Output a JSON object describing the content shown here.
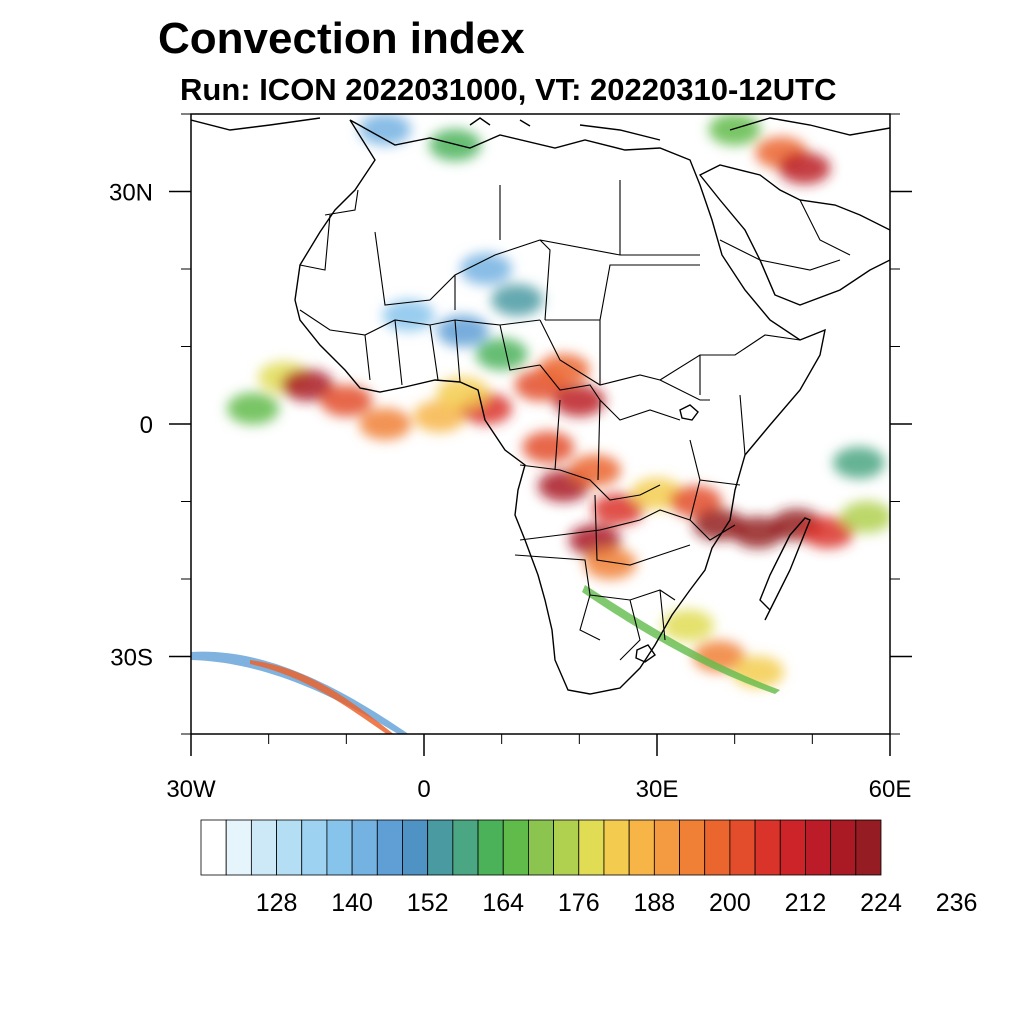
{
  "title": "Convection index",
  "subtitle": "Run: ICON 2022031000,  VT: 20220310-12UTC",
  "map": {
    "projection": "cylindrical-equidistant",
    "lon_range": [
      -30,
      60
    ],
    "lat_range": [
      -40,
      40
    ],
    "x_ticks": [
      {
        "value": -30,
        "label": "30W"
      },
      {
        "value": 0,
        "label": "0"
      },
      {
        "value": 30,
        "label": "30E"
      },
      {
        "value": 60,
        "label": "60E"
      }
    ],
    "y_ticks": [
      {
        "value": 30,
        "label": "30N"
      },
      {
        "value": 0,
        "label": "0"
      },
      {
        "value": -30,
        "label": "30S"
      }
    ]
  },
  "colorbar": {
    "labels": [
      "128",
      "140",
      "152",
      "164",
      "176",
      "188",
      "200",
      "212",
      "224",
      "236"
    ],
    "colors": [
      "#ffffff",
      "#e6f4fc",
      "#cde9f8",
      "#b4def4",
      "#9dd3f1",
      "#87c4ec",
      "#74b2e2",
      "#5f9fd6",
      "#4f93c4",
      "#4a9aa2",
      "#4aa683",
      "#4bb25a",
      "#61bb4b",
      "#8bc54f",
      "#b0d04f",
      "#e0dc54",
      "#f3cc4f",
      "#f7b548",
      "#f49a40",
      "#f08036",
      "#eb652f",
      "#e34d2c",
      "#da3329",
      "#cc2428",
      "#bb1c27",
      "#a91a25",
      "#941c22"
    ]
  },
  "fields": [
    {
      "lon": -18,
      "lat": 6,
      "value": 175
    },
    {
      "lon": -15,
      "lat": 5,
      "value": 215
    },
    {
      "lon": -22,
      "lat": 2,
      "value": 165
    },
    {
      "lon": -10,
      "lat": 3,
      "value": 200
    },
    {
      "lon": -5,
      "lat": 0,
      "value": 190
    },
    {
      "lon": 2,
      "lat": 1,
      "value": 185
    },
    {
      "lon": 8,
      "lat": 2,
      "value": 205
    },
    {
      "lon": 5,
      "lat": 4,
      "value": 180
    },
    {
      "lon": 15,
      "lat": 5,
      "value": 200
    },
    {
      "lon": 18,
      "lat": 7,
      "value": 195
    },
    {
      "lon": 20,
      "lat": 3,
      "value": 210
    },
    {
      "lon": 16,
      "lat": -3,
      "value": 200
    },
    {
      "lon": 18,
      "lat": -8,
      "value": 215
    },
    {
      "lon": 22,
      "lat": -6,
      "value": 195
    },
    {
      "lon": 25,
      "lat": -11,
      "value": 205
    },
    {
      "lon": 22,
      "lat": -15,
      "value": 215
    },
    {
      "lon": 24,
      "lat": -18,
      "value": 190
    },
    {
      "lon": 30,
      "lat": -9,
      "value": 180
    },
    {
      "lon": 35,
      "lat": -10,
      "value": 200
    },
    {
      "lon": 38,
      "lat": -13,
      "value": 225
    },
    {
      "lon": 43,
      "lat": -14,
      "value": 230
    },
    {
      "lon": 48,
      "lat": -13,
      "value": 228
    },
    {
      "lon": 52,
      "lat": -14,
      "value": 205
    },
    {
      "lon": 57,
      "lat": -12,
      "value": 170
    },
    {
      "lon": 56,
      "lat": -5,
      "value": 155
    },
    {
      "lon": 34,
      "lat": -26,
      "value": 175
    },
    {
      "lon": 38,
      "lat": -30,
      "value": 190
    },
    {
      "lon": 43,
      "lat": -32,
      "value": 180
    },
    {
      "lon": 46,
      "lat": 35,
      "value": 195
    },
    {
      "lon": 49,
      "lat": 33,
      "value": 210
    },
    {
      "lon": 40,
      "lat": 38,
      "value": 165
    },
    {
      "lon": 4,
      "lat": 36,
      "value": 160
    },
    {
      "lon": -5,
      "lat": 38,
      "value": 140
    },
    {
      "lon": 8,
      "lat": 20,
      "value": 140
    },
    {
      "lon": 12,
      "lat": 16,
      "value": 150
    },
    {
      "lon": 5,
      "lat": 12,
      "value": 145
    },
    {
      "lon": -2,
      "lat": 14,
      "value": 135
    },
    {
      "lon": 10,
      "lat": 9,
      "value": 160
    }
  ]
}
